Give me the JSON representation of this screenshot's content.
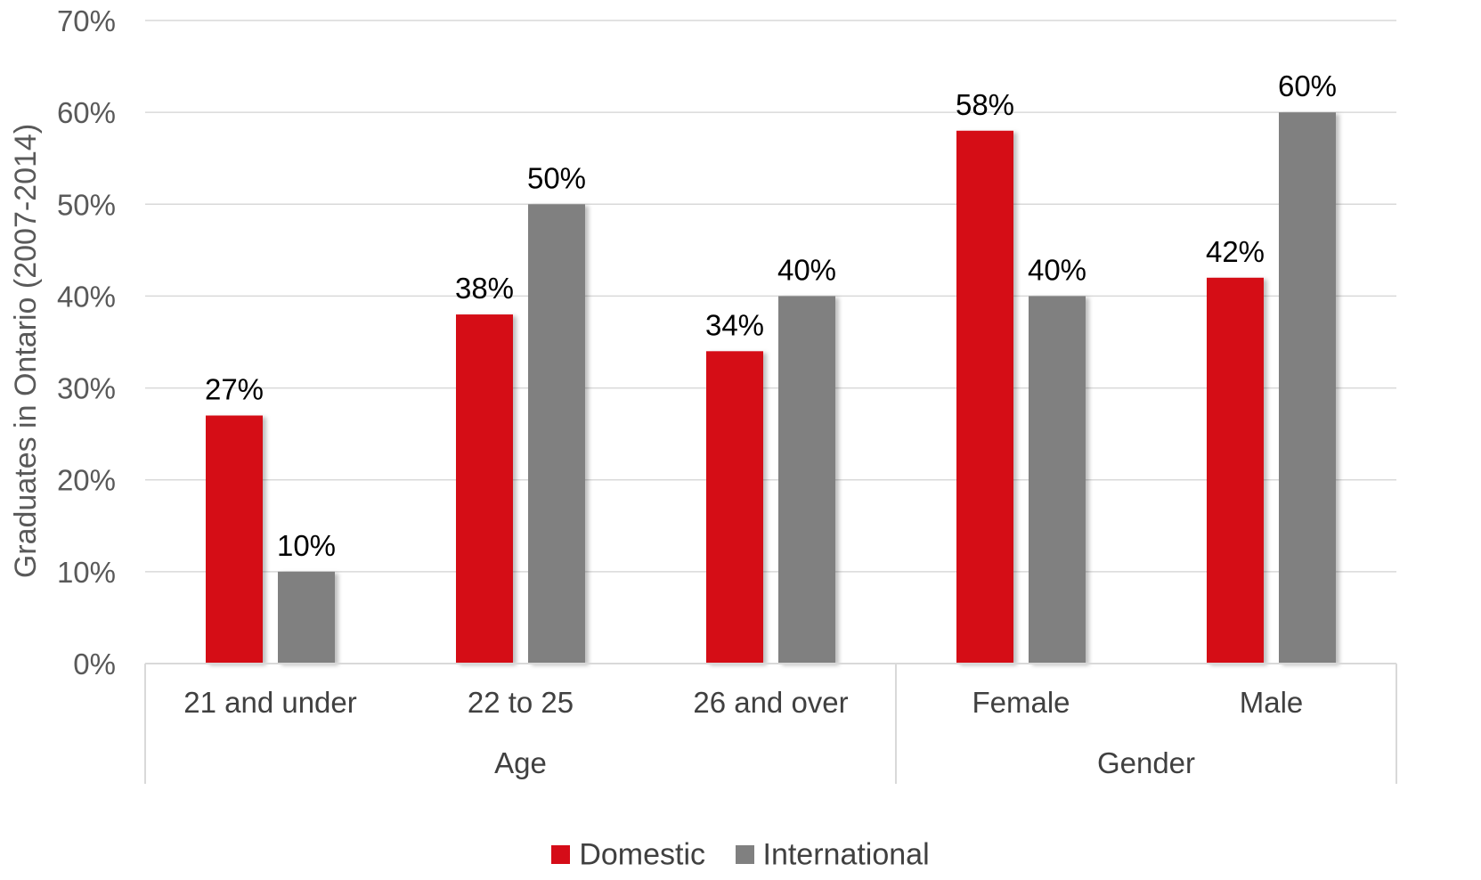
{
  "chart_data": {
    "type": "bar",
    "title": "",
    "ylabel": "Graduates in Ontario (2007-2014)",
    "xlabel": "",
    "ylim": [
      0,
      0.7
    ],
    "yticks": [
      0,
      0.1,
      0.2,
      0.3,
      0.4,
      0.5,
      0.6,
      0.7
    ],
    "ytick_labels": [
      "0%",
      "10%",
      "20%",
      "30%",
      "40%",
      "50%",
      "60%",
      "70%"
    ],
    "grid": "horizontal",
    "legend_position": "bottom",
    "categories": [
      "21 and under",
      "22 to 25",
      "26 and over",
      "Female",
      "Male"
    ],
    "groups": [
      {
        "label": "Age",
        "categories": [
          "21 and under",
          "22 to 25",
          "26 and over"
        ]
      },
      {
        "label": "Gender",
        "categories": [
          "Female",
          "Male"
        ]
      }
    ],
    "series": [
      {
        "name": "Domestic",
        "color": "#d50c18",
        "values": [
          0.27,
          0.38,
          0.34,
          0.58,
          0.42
        ],
        "labels": [
          "27%",
          "38%",
          "34%",
          "58%",
          "42%"
        ]
      },
      {
        "name": "International",
        "color": "#808080",
        "values": [
          0.1,
          0.5,
          0.4,
          0.4,
          0.6
        ],
        "labels": [
          "10%",
          "50%",
          "40%",
          "40%",
          "60%"
        ]
      }
    ]
  }
}
